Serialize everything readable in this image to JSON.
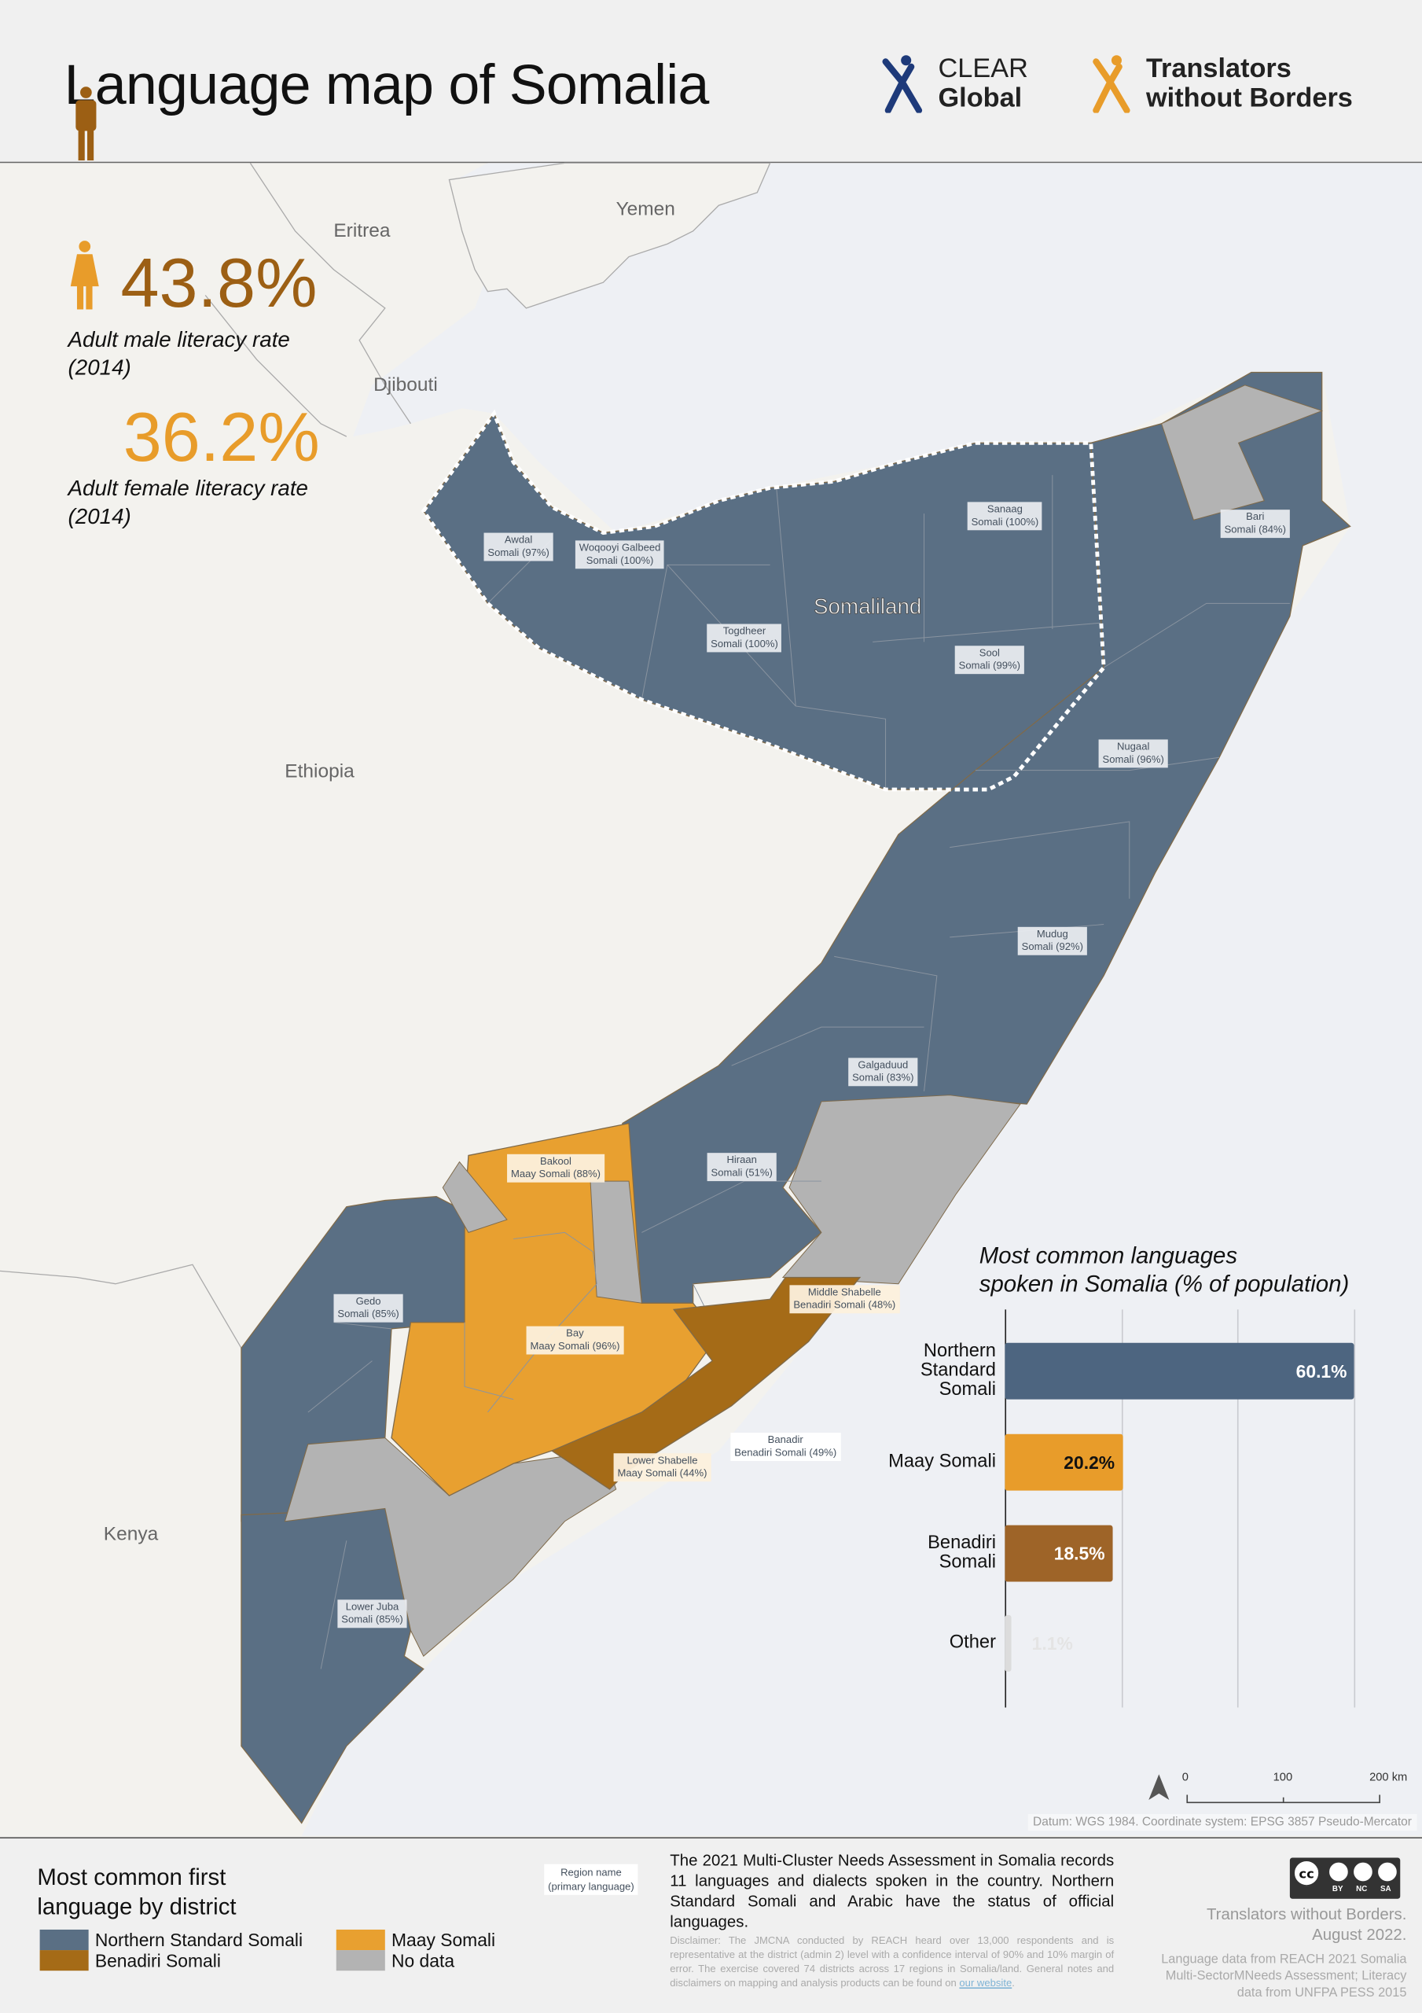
{
  "header": {
    "title": "Language map of Somalia",
    "logo_clear": [
      "CLEAR",
      "Global"
    ],
    "logo_twb": [
      "Translators",
      "without Borders"
    ]
  },
  "literacy": {
    "male": {
      "value": "43.8%",
      "caption": "Adult male literacy rate",
      "year": "(2014)",
      "color": "#9c5f14"
    },
    "female": {
      "value": "36.2%",
      "caption": "Adult female literacy rate",
      "year": "(2014)",
      "color": "#e89c2a"
    }
  },
  "countries": {
    "eritrea": "Eritrea",
    "yemen": "Yemen",
    "djibouti": "Djibouti",
    "ethiopia": "Ethiopia",
    "kenya": "Kenya"
  },
  "somaliland_label": "Somaliland",
  "regions": [
    {
      "name": "Awdal",
      "lang": "Somali (97%)"
    },
    {
      "name": "Woqooyi Galbeed",
      "lang": "Somali (100%)"
    },
    {
      "name": "Sanaag",
      "lang": "Somali (100%)"
    },
    {
      "name": "Bari",
      "lang": "Somali (84%)"
    },
    {
      "name": "Togdheer",
      "lang": "Somali (100%)"
    },
    {
      "name": "Sool",
      "lang": "Somali (99%)"
    },
    {
      "name": "Nugaal",
      "lang": "Somali (96%)"
    },
    {
      "name": "Mudug",
      "lang": "Somali (92%)"
    },
    {
      "name": "Galgaduud",
      "lang": "Somali (83%)"
    },
    {
      "name": "Hiraan",
      "lang": "Somali (51%)"
    },
    {
      "name": "Bakool",
      "lang": "Maay Somali (88%)"
    },
    {
      "name": "Gedo",
      "lang": "Somali (85%)"
    },
    {
      "name": "Bay",
      "lang": "Maay Somali (96%)"
    },
    {
      "name": "Middle Shabelle",
      "lang": "Benadiri Somali (48%)"
    },
    {
      "name": "Banadir",
      "lang": "Benadiri Somali (49%)"
    },
    {
      "name": "Lower Shabelle",
      "lang": "Maay Somali (44%)"
    },
    {
      "name": "Lower Juba",
      "lang": "Somali (85%)"
    }
  ],
  "map_colors": {
    "northern_standard": "#5a6f84",
    "maay": "#e8a030",
    "benadiri": "#a56b17",
    "no_data": "#b3b3b3",
    "sea": "#eef0f4",
    "land": "#f3f2ee"
  },
  "chart_data": {
    "type": "bar",
    "orientation": "horizontal",
    "title": "Most common languages spoken in Somalia (% of population)",
    "title_lines": [
      "Most common languages",
      "spoken in Somalia (% of population)"
    ],
    "categories": [
      "Northern Standard Somali",
      "Maay Somali",
      "Benadiri Somali",
      "Other"
    ],
    "category_lines": [
      [
        "Northern",
        "Standard",
        "Somali"
      ],
      [
        "Maay Somali"
      ],
      [
        "Benadiri",
        "Somali"
      ],
      [
        "Other"
      ]
    ],
    "values": [
      60.1,
      20.2,
      18.5,
      1.1
    ],
    "data_labels": [
      "60.1%",
      "20.2%",
      "18.5%",
      "1.1%"
    ],
    "colors": [
      "#4d6580",
      "#e89c2a",
      "#9e6428",
      "#dcdcdc"
    ],
    "xlim": [
      0,
      60
    ],
    "grid": true,
    "gridlines": [
      0,
      20,
      40,
      60
    ]
  },
  "scale_bar": {
    "ticks": [
      "0",
      "100",
      "200 km"
    ]
  },
  "datum": "Datum: WGS 1984. Coordinate system: EPSG 3857 Pseudo-Mercator",
  "footer": {
    "legend_title": [
      "Most common first",
      "language by district"
    ],
    "legend": [
      {
        "label": "Northern Standard Somali",
        "color": "#5a6f84"
      },
      {
        "label": "Benadiri Somali",
        "color": "#a56b17"
      },
      {
        "label": "Maay Somali",
        "color": "#e8a030"
      },
      {
        "label": "No data",
        "color": "#b3b3b3"
      }
    ],
    "key_box": [
      "Region name",
      "(primary language)"
    ],
    "summary": "The 2021 Multi-Cluster Needs Assessment in Somalia records 11 languages and dialects spoken in the country. Northern Standard Somali and Arabic have the status of official languages.",
    "disclaimer": "Disclaimer: The JMCNA conducted by REACH heard over 13,000 respondents and is representative at the district (admin 2) level with a confidence interval of 90% and 10% margin of error. The exercise covered 74 districts across 17 regions in Somalia/land. General notes and disclaimers on mapping and analysis products can be found on",
    "disclaimer_link": "our website",
    "license": [
      "BY",
      "NC",
      "SA"
    ],
    "credit": [
      "Translators without Borders.",
      "August 2022."
    ],
    "sources": [
      "Language data from REACH 2021 Somalia",
      "Multi-SectorMNeeds Assessment; Literacy",
      "data from UNFPA PESS 2015"
    ]
  }
}
